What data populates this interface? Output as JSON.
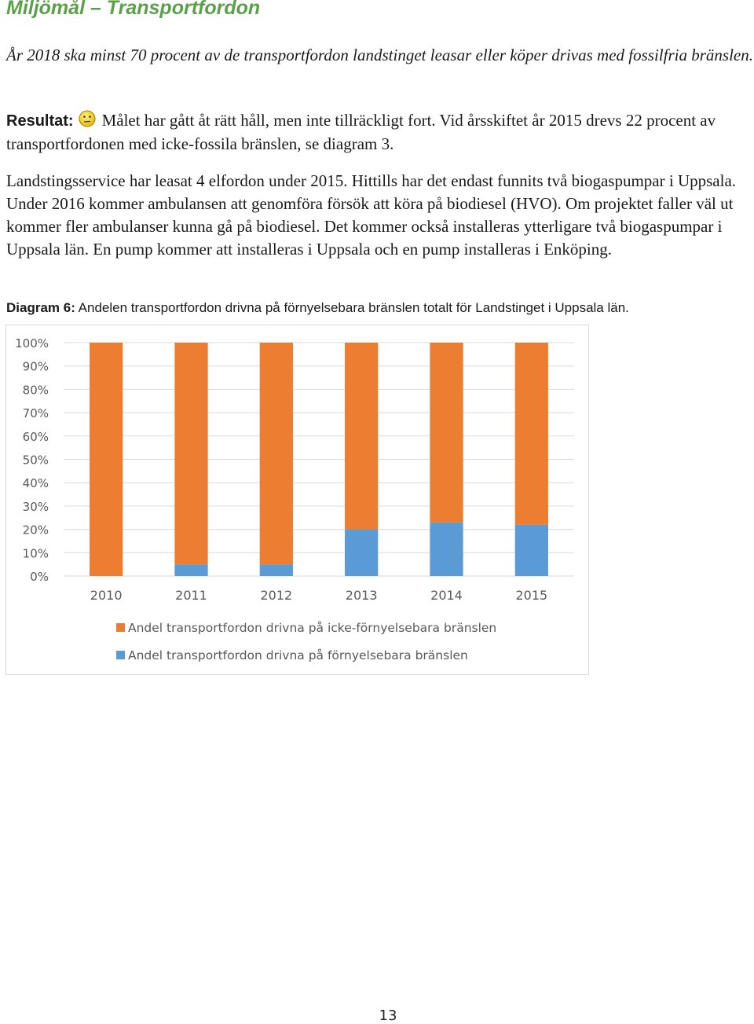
{
  "document": {
    "title": "Miljömål – Transportfordon",
    "goal": "År 2018 ska minst 70 procent av de transportfordon landstinget leasar eller köper drivas med fossilfria bränslen.",
    "result_label": "Resultat:",
    "result_icon": "neutral-smiley-icon",
    "result_text": "Målet har gått åt rätt håll, men inte tillräckligt fort. Vid årsskiftet år 2015 drevs 22 procent av transportfordonen med icke-fossila bränslen, se diagram 3.",
    "body": "Landstingsservice har leasat 4 elfordon under 2015. Hittills har det endast funnits två biogaspumpar i Uppsala. Under 2016 kommer ambulansen att genomföra försök att köra på biodiesel (HVO). Om projektet faller väl ut kommer fler ambulanser kunna gå på biodiesel. Det kommer också installeras ytterligare två biogaspumpar i Uppsala län. En pump kommer att installeras i Uppsala och en pump installeras i Enköping.",
    "caption_label": "Diagram 6:",
    "caption_text": "Andelen transportfordon drivna på förnyelsebara bränslen totalt för Landstinget i Uppsala län.",
    "page_number": "13"
  },
  "chart_data": {
    "type": "bar",
    "stacked": true,
    "categories": [
      "2010",
      "2011",
      "2012",
      "2013",
      "2014",
      "2015"
    ],
    "series": [
      {
        "name": "Andel transportfordon drivna på förnyelsebara bränslen",
        "color": "#5b9bd5",
        "values": [
          0,
          5,
          5,
          20,
          23,
          22
        ]
      },
      {
        "name": "Andel transportfordon drivna på icke-förnyelsebara bränslen",
        "color": "#ed7d31",
        "values": [
          100,
          95,
          95,
          80,
          77,
          78
        ]
      }
    ],
    "y_ticks": [
      "0%",
      "10%",
      "20%",
      "30%",
      "40%",
      "50%",
      "60%",
      "70%",
      "80%",
      "90%",
      "100%"
    ],
    "ylim": [
      0,
      100
    ],
    "grid": true,
    "legend_position": "bottom",
    "legend_order": [
      1,
      0
    ],
    "title": "",
    "xlabel": "",
    "ylabel": ""
  }
}
